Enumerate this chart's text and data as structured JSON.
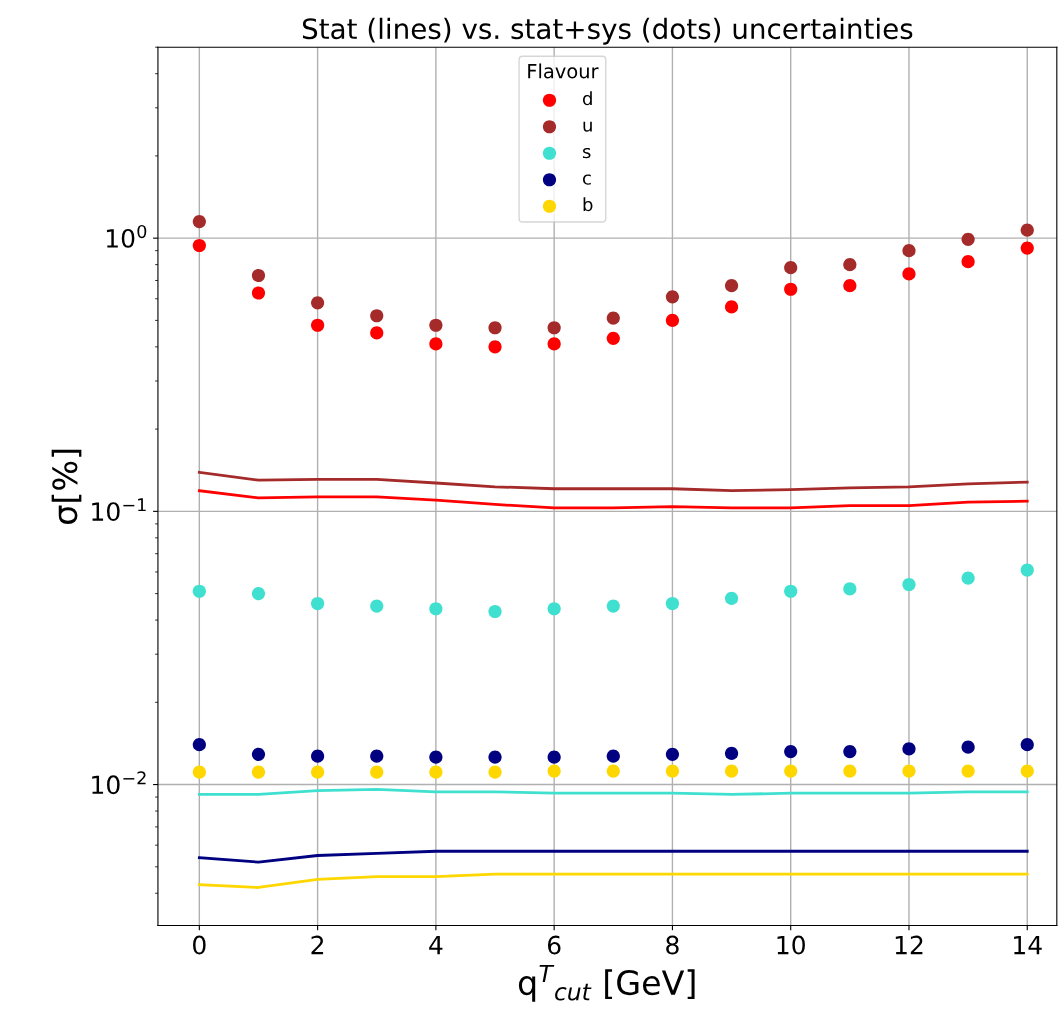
{
  "chart_data": {
    "type": "scatter",
    "title": "Stat (lines) vs. stat+sys (dots) uncertainties",
    "xlabel": "q$^{T}$$_{cut}$ [GeV]",
    "ylabel": "σ[%]",
    "legend_title": "Flavour",
    "x": [
      0,
      1,
      2,
      3,
      4,
      5,
      6,
      7,
      8,
      9,
      10,
      11,
      12,
      13,
      14
    ],
    "xlim": [
      -0.7,
      14.5
    ],
    "xticks": [
      0,
      2,
      4,
      6,
      8,
      10,
      12,
      14
    ],
    "log": "y",
    "ylim": [
      0.00305,
      5.0
    ],
    "yticks": [
      {
        "value": 0.01,
        "label": "10$^{−2}$"
      },
      {
        "value": 0.1,
        "label": "10$^{−1}$"
      },
      {
        "value": 1,
        "label": "10$^{0}$"
      }
    ],
    "grid": true,
    "legend": "top",
    "series": [
      {
        "name": "d",
        "marker": "circle",
        "color": "#ff0000",
        "values": [
          0.94,
          0.63,
          0.48,
          0.45,
          0.41,
          0.4,
          0.41,
          0.43,
          0.5,
          0.56,
          0.65,
          0.67,
          0.74,
          0.82,
          0.92
        ]
      },
      {
        "name": "u",
        "marker": "circle",
        "color": "#a52a2a",
        "values": [
          1.15,
          0.73,
          0.58,
          0.52,
          0.48,
          0.47,
          0.47,
          0.51,
          0.61,
          0.67,
          0.78,
          0.8,
          0.9,
          0.99,
          1.07
        ]
      },
      {
        "name": "s",
        "marker": "circle",
        "color": "#40e0d0",
        "values": [
          0.051,
          0.05,
          0.046,
          0.045,
          0.044,
          0.043,
          0.044,
          0.045,
          0.046,
          0.048,
          0.051,
          0.052,
          0.054,
          0.057,
          0.061
        ]
      },
      {
        "name": "c",
        "marker": "circle",
        "color": "#000080",
        "values": [
          0.014,
          0.0129,
          0.0127,
          0.0127,
          0.0126,
          0.0126,
          0.0126,
          0.0127,
          0.0129,
          0.013,
          0.0132,
          0.0132,
          0.0135,
          0.0137,
          0.014
        ]
      },
      {
        "name": "b",
        "marker": "circle",
        "color": "#ffd700",
        "values": [
          0.0111,
          0.0111,
          0.0111,
          0.0111,
          0.0111,
          0.0111,
          0.0112,
          0.0112,
          0.0112,
          0.0112,
          0.0112,
          0.0112,
          0.0112,
          0.0112,
          0.0112
        ]
      },
      {
        "type": "line",
        "color": "#ff0000",
        "values": [
          0.119,
          0.112,
          0.113,
          0.113,
          0.11,
          0.106,
          0.103,
          0.103,
          0.104,
          0.103,
          0.103,
          0.105,
          0.105,
          0.108,
          0.109
        ]
      },
      {
        "type": "line",
        "color": "#a52a2a",
        "values": [
          0.139,
          0.13,
          0.131,
          0.131,
          0.127,
          0.123,
          0.121,
          0.121,
          0.121,
          0.119,
          0.12,
          0.122,
          0.123,
          0.126,
          0.128
        ]
      },
      {
        "type": "line",
        "color": "#40e0d0",
        "values": [
          0.0092,
          0.0092,
          0.0095,
          0.0096,
          0.0094,
          0.0094,
          0.0093,
          0.0093,
          0.0093,
          0.0092,
          0.0093,
          0.0093,
          0.0093,
          0.0094,
          0.0094
        ]
      },
      {
        "type": "line",
        "color": "#000080",
        "values": [
          0.0054,
          0.0052,
          0.0055,
          0.0056,
          0.0057,
          0.0057,
          0.0057,
          0.0057,
          0.0057,
          0.0057,
          0.0057,
          0.0057,
          0.0057,
          0.0057,
          0.0057
        ]
      },
      {
        "type": "line",
        "color": "#ffd700",
        "values": [
          0.0043,
          0.0042,
          0.0045,
          0.0046,
          0.0046,
          0.0047,
          0.0047,
          0.0047,
          0.0047,
          0.0047,
          0.0047,
          0.0047,
          0.0047,
          0.0047,
          0.0047
        ]
      }
    ]
  }
}
